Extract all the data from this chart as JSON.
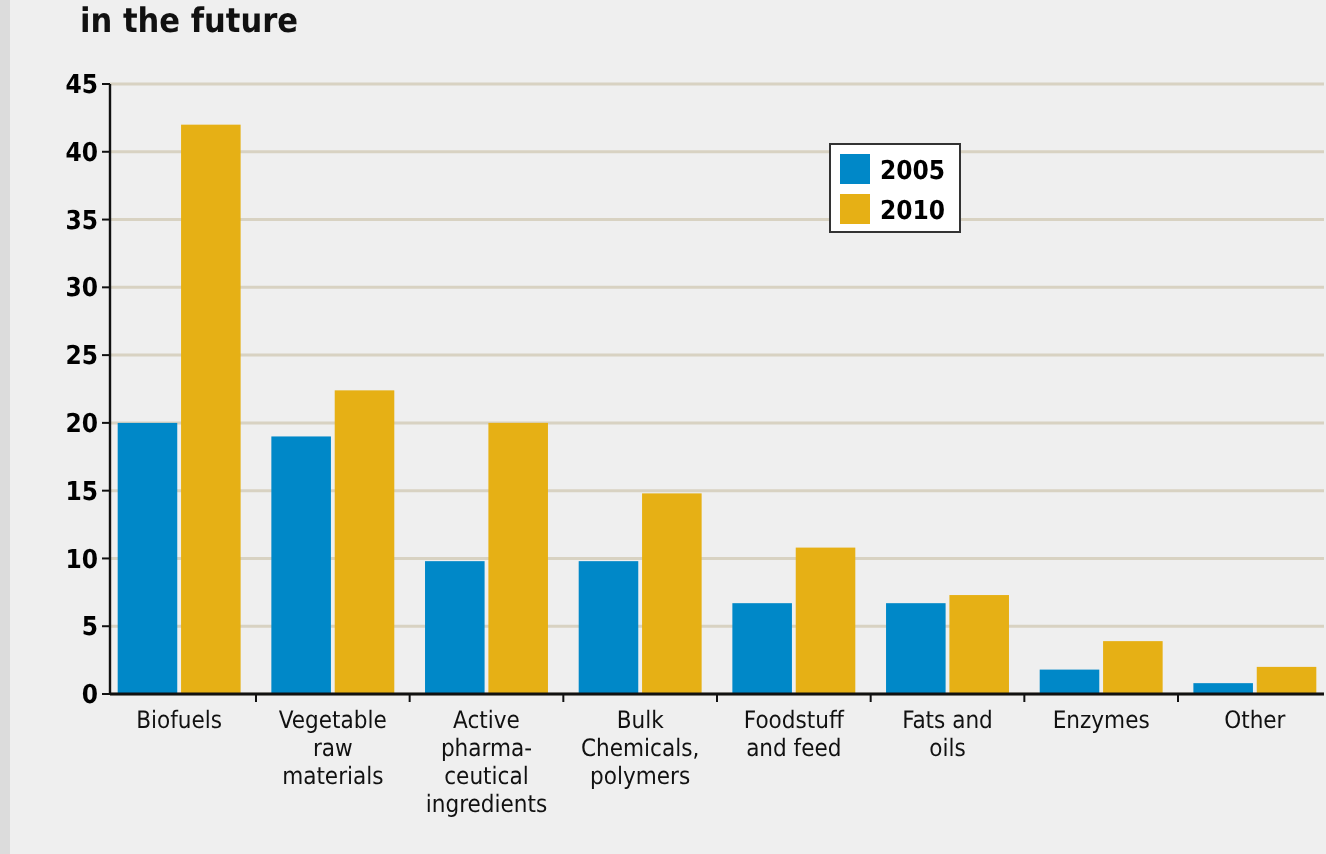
{
  "chart_data": {
    "type": "bar",
    "title": "in the future",
    "categories": [
      "Biofuels",
      "Vegetable\nraw\nmaterials",
      "Active\npharma-\nceutical\ningredients",
      "Bulk\nChemicals,\npolymers",
      "Foodstuff\nand feed",
      "Fats and\noils",
      "Enzymes",
      "Other"
    ],
    "series": [
      {
        "name": "2005",
        "color": "#0088c8",
        "values": [
          20,
          19,
          9.8,
          9.8,
          6.7,
          6.7,
          1.8,
          0.8
        ]
      },
      {
        "name": "2010",
        "color": "#e6b015",
        "values": [
          42,
          22.4,
          20,
          14.8,
          10.8,
          7.3,
          3.9,
          2.0
        ]
      }
    ],
    "ylim": [
      0,
      45
    ],
    "yticks": [
      0,
      5,
      10,
      15,
      20,
      25,
      30,
      35,
      40,
      45
    ],
    "grid": "y",
    "legend": "top right"
  }
}
